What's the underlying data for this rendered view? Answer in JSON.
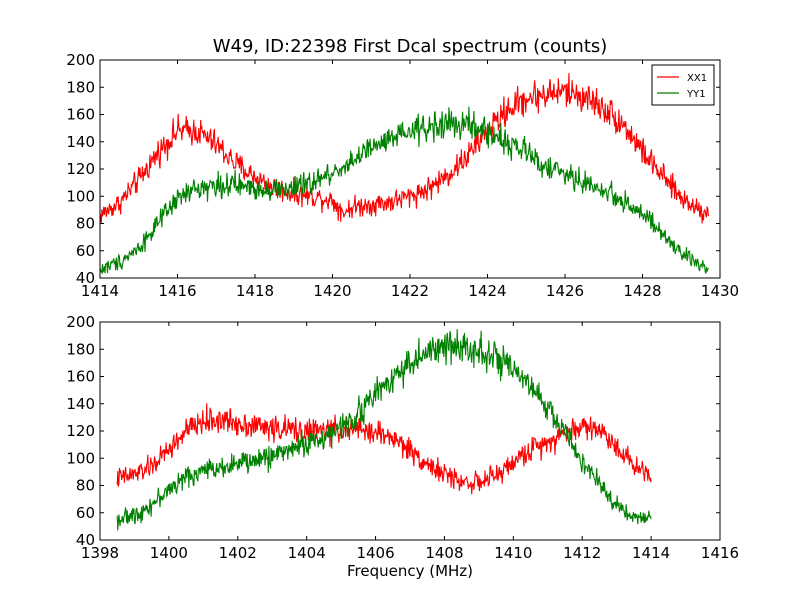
{
  "figure": {
    "title": "W49, ID:22398 First Dcal spectrum (counts)",
    "xlabel": "Frequency (MHz)"
  },
  "chart_data": [
    {
      "type": "line",
      "title": "W49, ID:22398 First Dcal spectrum (counts)",
      "xlabel": "",
      "ylabel": "",
      "xlim": [
        1414,
        1430
      ],
      "ylim": [
        40,
        200
      ],
      "xticks": [
        1414,
        1416,
        1418,
        1420,
        1422,
        1424,
        1426,
        1428,
        1430
      ],
      "yticks": [
        40,
        60,
        80,
        100,
        120,
        140,
        160,
        180,
        200
      ],
      "grid": false,
      "legend": "top-right",
      "series": [
        {
          "name": "XX1",
          "color": "#ff0000",
          "x": [
            1414.0,
            1414.5,
            1415.0,
            1415.5,
            1416.0,
            1416.5,
            1417.0,
            1417.5,
            1418.0,
            1418.5,
            1419.0,
            1419.5,
            1420.0,
            1420.3,
            1420.5,
            1421.0,
            1421.5,
            1422.0,
            1422.5,
            1423.0,
            1423.5,
            1424.0,
            1424.5,
            1425.0,
            1425.5,
            1426.0,
            1426.5,
            1427.0,
            1427.5,
            1428.0,
            1428.5,
            1429.0,
            1429.5,
            1429.7
          ],
          "y": [
            86,
            95,
            112,
            132,
            148,
            148,
            138,
            124,
            114,
            106,
            102,
            100,
            97,
            88,
            92,
            94,
            96,
            100,
            106,
            116,
            130,
            148,
            163,
            172,
            175,
            177,
            173,
            165,
            153,
            133,
            115,
            99,
            90,
            88
          ]
        },
        {
          "name": "YY1",
          "color": "#008000",
          "x": [
            1414.0,
            1414.5,
            1415.0,
            1415.5,
            1416.0,
            1416.5,
            1417.0,
            1417.5,
            1418.0,
            1418.5,
            1419.0,
            1419.5,
            1420.0,
            1420.5,
            1421.0,
            1421.5,
            1422.0,
            1422.5,
            1423.0,
            1423.5,
            1424.0,
            1424.5,
            1425.0,
            1425.5,
            1426.0,
            1426.5,
            1427.0,
            1427.5,
            1428.0,
            1428.5,
            1429.0,
            1429.5,
            1429.7
          ],
          "y": [
            46,
            52,
            62,
            80,
            98,
            106,
            108,
            108,
            106,
            105,
            106,
            110,
            117,
            126,
            135,
            141,
            147,
            151,
            153,
            152,
            147,
            140,
            132,
            122,
            116,
            110,
            104,
            97,
            87,
            72,
            58,
            49,
            47
          ]
        }
      ]
    },
    {
      "type": "line",
      "title": "",
      "xlabel": "Frequency (MHz)",
      "ylabel": "",
      "xlim": [
        1398,
        1416
      ],
      "ylim": [
        40,
        200
      ],
      "xticks": [
        1398,
        1400,
        1402,
        1404,
        1406,
        1408,
        1410,
        1412,
        1414,
        1416
      ],
      "yticks": [
        40,
        60,
        80,
        100,
        120,
        140,
        160,
        180,
        200
      ],
      "grid": false,
      "legend": "none",
      "series": [
        {
          "color": "#ff0000",
          "x": [
            1398.5,
            1399.0,
            1399.5,
            1400.0,
            1400.5,
            1401.0,
            1401.5,
            1402.0,
            1402.5,
            1403.0,
            1403.5,
            1404.0,
            1404.5,
            1405.0,
            1405.5,
            1406.0,
            1406.5,
            1407.0,
            1407.5,
            1408.0,
            1408.5,
            1409.0,
            1409.5,
            1410.0,
            1410.5,
            1411.0,
            1411.5,
            1412.0,
            1412.5,
            1413.0,
            1413.5,
            1414.0
          ],
          "y": [
            85,
            88,
            94,
            106,
            120,
            127,
            128,
            126,
            124,
            122,
            121,
            120,
            120,
            121,
            121,
            119,
            115,
            106,
            96,
            88,
            83,
            82,
            87,
            97,
            106,
            113,
            118,
            124,
            121,
            109,
            95,
            88
          ]
        },
        {
          "color": "#008000",
          "x": [
            1398.5,
            1399.0,
            1399.5,
            1400.0,
            1400.5,
            1401.0,
            1401.5,
            1402.0,
            1402.5,
            1403.0,
            1403.5,
            1404.0,
            1404.5,
            1405.0,
            1405.5,
            1406.0,
            1406.5,
            1407.0,
            1407.5,
            1408.0,
            1408.5,
            1409.0,
            1409.5,
            1410.0,
            1410.5,
            1411.0,
            1411.5,
            1412.0,
            1412.5,
            1413.0,
            1413.5,
            1414.0
          ],
          "y": [
            55,
            58,
            66,
            77,
            86,
            91,
            94,
            96,
            98,
            102,
            107,
            111,
            115,
            122,
            133,
            147,
            160,
            170,
            177,
            181,
            183,
            180,
            173,
            163,
            152,
            137,
            119,
            98,
            80,
            66,
            57,
            55
          ]
        }
      ]
    }
  ]
}
